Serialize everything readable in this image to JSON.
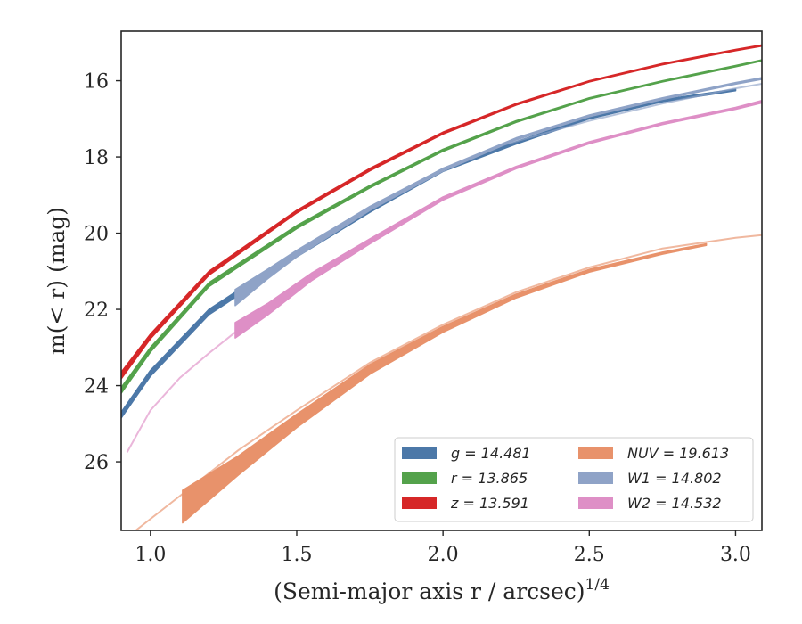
{
  "chart_data": {
    "type": "line",
    "xlabel": "(Semi-major axis r / arcsec)",
    "xlabel_superscript": "1/4",
    "ylabel": "m(< r) (mag)",
    "xlim": [
      0.9,
      3.09
    ],
    "ylim": [
      27.8,
      14.7
    ],
    "y_inverted": true,
    "x_ticks": [
      1.0,
      1.5,
      2.0,
      2.5,
      3.0
    ],
    "x_tick_labels": [
      "1.0",
      "1.5",
      "2.0",
      "2.5",
      "3.0"
    ],
    "y_ticks": [
      16,
      18,
      20,
      22,
      24,
      26
    ],
    "y_tick_labels": [
      "16",
      "18",
      "20",
      "22",
      "24",
      "26"
    ],
    "grid": false,
    "legend_position": "bottom-right",
    "series": [
      {
        "name": "g = 14.481",
        "legend_label": "g = 14.481",
        "color": "#4c78a8",
        "band": {
          "x": [
            0.9,
            1.0,
            1.2,
            1.5,
            1.75,
            2.0,
            2.25,
            2.5,
            2.75,
            3.0
          ],
          "y_lo": [
            24.7,
            23.6,
            22.0,
            20.5,
            19.35,
            18.3,
            17.6,
            16.95,
            16.5,
            16.22
          ],
          "y_hi": [
            24.85,
            23.75,
            22.14,
            20.62,
            19.45,
            18.38,
            17.66,
            17.0,
            16.55,
            16.26
          ]
        },
        "line": null
      },
      {
        "name": "r = 13.865",
        "legend_label": "r = 13.865",
        "color": "#54a24b",
        "band": {
          "x": [
            0.9,
            1.0,
            1.2,
            1.5,
            1.75,
            2.0,
            2.25,
            2.5,
            2.75,
            3.0,
            3.09
          ],
          "y_lo": [
            24.05,
            23.0,
            21.3,
            19.8,
            18.75,
            17.8,
            17.05,
            16.45,
            16.0,
            15.6,
            15.45
          ],
          "y_hi": [
            24.2,
            23.12,
            21.4,
            19.88,
            18.81,
            17.85,
            17.09,
            16.48,
            16.03,
            15.63,
            15.48
          ]
        },
        "line": null
      },
      {
        "name": "z = 13.591",
        "legend_label": "z = 13.591",
        "color": "#d62728",
        "band": {
          "x": [
            0.9,
            1.0,
            1.2,
            1.5,
            1.75,
            2.0,
            2.25,
            2.5,
            2.75,
            3.0,
            3.09
          ],
          "y_lo": [
            23.65,
            22.65,
            21.0,
            19.4,
            18.3,
            17.35,
            16.6,
            16.0,
            15.55,
            15.18,
            15.06
          ],
          "y_hi": [
            23.82,
            22.77,
            21.1,
            19.47,
            18.36,
            17.4,
            16.64,
            16.03,
            15.58,
            15.21,
            15.09
          ]
        },
        "line": null
      },
      {
        "name": "NUV = 19.613",
        "legend_label": "NUV = 19.613",
        "color": "#e8926b",
        "band": {
          "x": [
            1.11,
            1.3,
            1.5,
            1.75,
            2.0,
            2.25,
            2.5,
            2.75,
            2.9
          ],
          "y_lo": [
            26.75,
            25.85,
            24.75,
            23.45,
            22.45,
            21.6,
            20.95,
            20.5,
            20.28
          ],
          "y_hi": [
            27.6,
            26.35,
            25.1,
            23.7,
            22.6,
            21.7,
            21.02,
            20.55,
            20.32
          ]
        },
        "line": {
          "x": [
            0.95,
            1.1,
            1.3,
            1.5,
            1.75,
            2.0,
            2.25,
            2.5,
            2.75,
            3.0,
            3.09
          ],
          "y": [
            27.8,
            26.9,
            25.7,
            24.65,
            23.4,
            22.4,
            21.55,
            20.9,
            20.4,
            20.12,
            20.05
          ]
        }
      },
      {
        "name": "W1 = 14.802",
        "legend_label": "W1 = 14.802",
        "color": "#8fa3c7",
        "band": {
          "x": [
            1.29,
            1.4,
            1.5,
            1.75,
            2.0,
            2.25,
            2.5,
            2.75,
            3.0,
            3.09
          ],
          "y_lo": [
            21.48,
            20.95,
            20.45,
            19.3,
            18.3,
            17.5,
            16.9,
            16.45,
            16.05,
            15.92
          ],
          "y_hi": [
            21.9,
            21.2,
            20.62,
            19.4,
            18.37,
            17.55,
            16.94,
            16.49,
            16.09,
            15.96
          ]
        },
        "line": {
          "x": [
            2.2,
            2.5,
            2.75,
            3.0,
            3.09
          ],
          "y": [
            17.7,
            17.05,
            16.6,
            16.2,
            16.08
          ]
        }
      },
      {
        "name": "W2 = 14.532",
        "legend_label": "W2 = 14.532",
        "color": "#de8fc6",
        "band": {
          "x": [
            1.29,
            1.4,
            1.55,
            1.75,
            2.0,
            2.25,
            2.5,
            2.75,
            3.0,
            3.09
          ],
          "y_lo": [
            22.35,
            21.85,
            21.05,
            20.15,
            19.05,
            18.25,
            17.6,
            17.1,
            16.7,
            16.52
          ],
          "y_hi": [
            22.75,
            22.15,
            21.25,
            20.28,
            19.13,
            18.31,
            17.65,
            17.15,
            16.75,
            16.58
          ]
        },
        "line": {
          "x": [
            0.92,
            1.0,
            1.1,
            1.2,
            1.29
          ],
          "y": [
            25.75,
            24.65,
            23.8,
            23.15,
            22.6
          ]
        }
      }
    ]
  }
}
